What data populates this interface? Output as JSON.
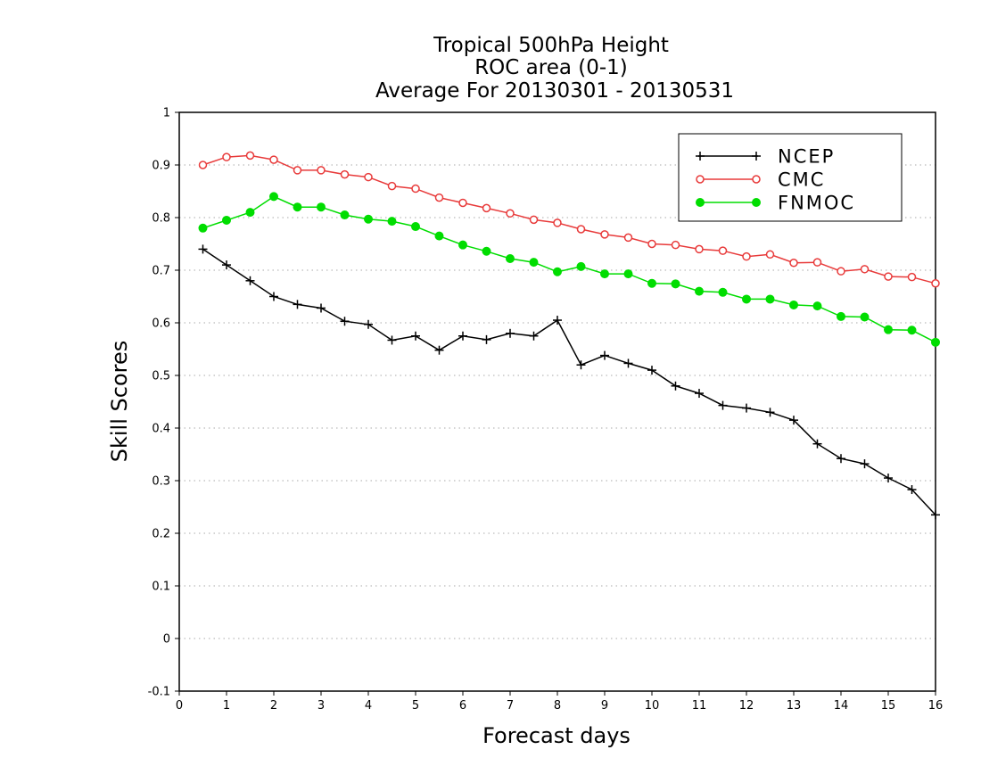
{
  "chart_data": {
    "type": "line",
    "title_lines": [
      "Tropical 500hPa Height",
      "ROC area (0-1)",
      "Average For 20130301 - 20130531"
    ],
    "xlabel": "Forecast days",
    "ylabel": "Skill Scores",
    "xlim": [
      0,
      16
    ],
    "ylim": [
      -0.1,
      1
    ],
    "xticks": [
      0,
      1,
      2,
      3,
      4,
      5,
      6,
      7,
      8,
      9,
      10,
      11,
      12,
      13,
      14,
      15,
      16
    ],
    "yticks": [
      -0.1,
      0,
      0.1,
      0.2,
      0.3,
      0.4,
      0.5,
      0.6,
      0.7,
      0.8,
      0.9,
      1
    ],
    "ytick_labels": [
      "-0.1",
      "0",
      "0.1",
      "0.2",
      "0.3",
      "0.4",
      "0.5",
      "0.6",
      "0.7",
      "0.8",
      "0.9",
      "1"
    ],
    "grid": "horizontal dotted",
    "legend_position": "top-right",
    "x": [
      0.5,
      1,
      1.5,
      2,
      2.5,
      3,
      3.5,
      4,
      4.5,
      5,
      5.5,
      6,
      6.5,
      7,
      7.5,
      8,
      8.5,
      9,
      9.5,
      10,
      10.5,
      11,
      11.5,
      12,
      12.5,
      13,
      13.5,
      14,
      14.5,
      15,
      15.5,
      16
    ],
    "series": [
      {
        "name": "NCEP",
        "color": "#000000",
        "marker": "plus",
        "values": [
          0.74,
          0.71,
          0.68,
          0.65,
          0.635,
          0.628,
          0.603,
          0.597,
          0.567,
          0.575,
          0.548,
          0.575,
          0.568,
          0.58,
          0.575,
          0.605,
          0.52,
          0.538,
          0.523,
          0.51,
          0.48,
          0.466,
          0.443,
          0.438,
          0.43,
          0.415,
          0.37,
          0.342,
          0.332,
          0.305,
          0.283,
          0.235
        ]
      },
      {
        "name": "CMC",
        "color": "#e83a3a",
        "marker": "open-circle",
        "values": [
          0.9,
          0.915,
          0.918,
          0.91,
          0.89,
          0.89,
          0.882,
          0.877,
          0.86,
          0.855,
          0.838,
          0.828,
          0.818,
          0.808,
          0.796,
          0.79,
          0.778,
          0.768,
          0.762,
          0.75,
          0.748,
          0.74,
          0.737,
          0.726,
          0.73,
          0.714,
          0.715,
          0.698,
          0.702,
          0.688,
          0.687,
          0.675
        ]
      },
      {
        "name": "FNMOC",
        "color": "#00dd00",
        "marker": "filled-circle",
        "values": [
          0.78,
          0.795,
          0.81,
          0.84,
          0.82,
          0.82,
          0.805,
          0.797,
          0.793,
          0.783,
          0.765,
          0.748,
          0.736,
          0.722,
          0.715,
          0.697,
          0.707,
          0.693,
          0.693,
          0.675,
          0.674,
          0.66,
          0.658,
          0.645,
          0.645,
          0.634,
          0.632,
          0.612,
          0.611,
          0.587,
          0.586,
          0.563
        ]
      }
    ]
  }
}
